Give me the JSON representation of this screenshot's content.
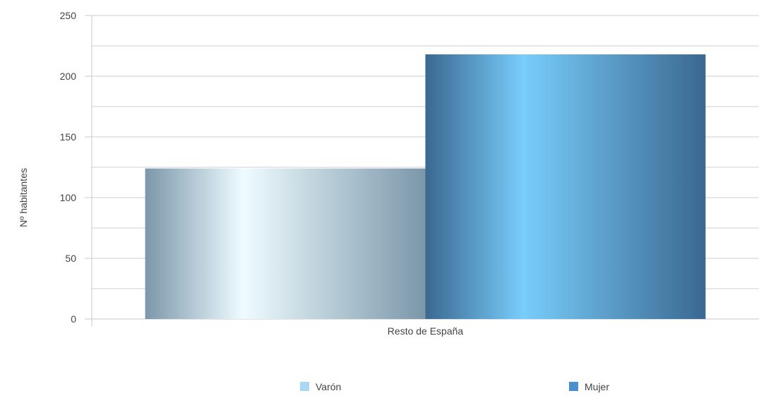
{
  "chart_data": {
    "type": "bar",
    "categories": [
      "Resto de España"
    ],
    "series": [
      {
        "name": "Varón",
        "values": [
          124
        ],
        "color": "#a9d8f5"
      },
      {
        "name": "Mujer",
        "values": [
          218
        ],
        "color": "#4a8fd0"
      }
    ],
    "title": "",
    "xlabel": "",
    "ylabel": "Nº habitantes",
    "ylim": [
      0,
      250
    ],
    "yticks": [
      0,
      50,
      100,
      150,
      200,
      250
    ],
    "y_minor_step": 25,
    "grid": true,
    "legend": "bottom"
  }
}
